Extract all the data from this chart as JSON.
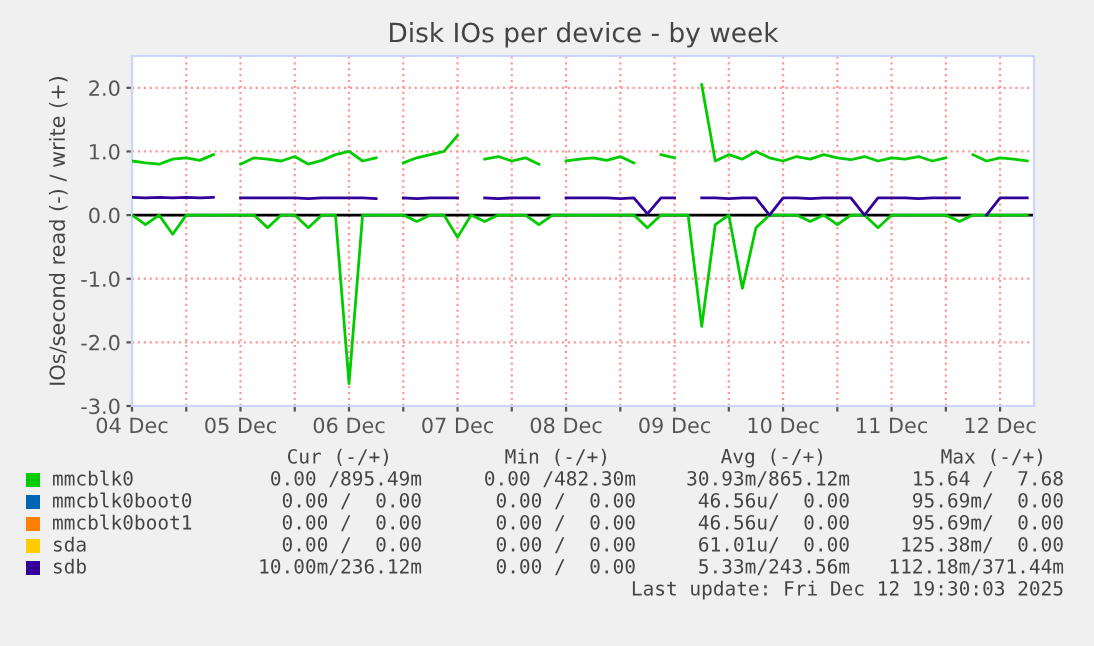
{
  "chart_data": {
    "type": "line",
    "title": "Disk IOs per device - by week",
    "ylabel": "IOs/second read (-) / write (+)",
    "x": [
      "2025-12-04T00:00",
      "2025-12-04T03:00",
      "2025-12-04T06:00",
      "2025-12-04T09:00",
      "2025-12-04T12:00",
      "2025-12-04T15:00",
      "2025-12-04T18:00",
      "2025-12-04T21:00",
      "2025-12-05T00:00",
      "2025-12-05T03:00",
      "2025-12-05T06:00",
      "2025-12-05T09:00",
      "2025-12-05T12:00",
      "2025-12-05T15:00",
      "2025-12-05T18:00",
      "2025-12-05T21:00",
      "2025-12-06T00:00",
      "2025-12-06T03:00",
      "2025-12-06T06:00",
      "2025-12-06T09:00",
      "2025-12-06T12:00",
      "2025-12-06T15:00",
      "2025-12-06T18:00",
      "2025-12-06T21:00",
      "2025-12-07T00:00",
      "2025-12-07T03:00",
      "2025-12-07T06:00",
      "2025-12-07T09:00",
      "2025-12-07T12:00",
      "2025-12-07T15:00",
      "2025-12-07T18:00",
      "2025-12-07T21:00",
      "2025-12-08T00:00",
      "2025-12-08T03:00",
      "2025-12-08T06:00",
      "2025-12-08T09:00",
      "2025-12-08T12:00",
      "2025-12-08T15:00",
      "2025-12-08T18:00",
      "2025-12-08T21:00",
      "2025-12-09T00:00",
      "2025-12-09T03:00",
      "2025-12-09T06:00",
      "2025-12-09T09:00",
      "2025-12-09T12:00",
      "2025-12-09T15:00",
      "2025-12-09T18:00",
      "2025-12-09T21:00",
      "2025-12-10T00:00",
      "2025-12-10T03:00",
      "2025-12-10T06:00",
      "2025-12-10T09:00",
      "2025-12-10T12:00",
      "2025-12-10T15:00",
      "2025-12-10T18:00",
      "2025-12-10T21:00",
      "2025-12-11T00:00",
      "2025-12-11T03:00",
      "2025-12-11T06:00",
      "2025-12-11T09:00",
      "2025-12-11T12:00",
      "2025-12-11T15:00",
      "2025-12-11T18:00",
      "2025-12-11T21:00",
      "2025-12-12T00:00",
      "2025-12-12T03:00",
      "2025-12-12T06:00"
    ],
    "series": [
      {
        "name": "mmcblk0",
        "color": "#00cc00",
        "values": [
          0.85,
          0.82,
          0.8,
          0.88,
          0.9,
          0.86,
          0.95,
          null,
          0.8,
          0.9,
          0.88,
          0.85,
          0.92,
          0.8,
          0.86,
          0.95,
          1.0,
          0.85,
          0.9,
          null,
          0.82,
          0.9,
          0.95,
          1.0,
          1.25,
          null,
          0.88,
          0.92,
          0.85,
          0.9,
          0.8,
          null,
          0.85,
          0.88,
          0.9,
          0.86,
          0.92,
          0.82,
          null,
          0.95,
          0.9,
          null,
          2.05,
          0.85,
          0.95,
          0.88,
          1.0,
          0.9,
          0.85,
          0.92,
          0.88,
          0.95,
          0.9,
          0.87,
          0.92,
          0.85,
          0.9,
          0.88,
          0.92,
          0.85,
          0.9,
          null,
          0.95,
          0.85,
          0.9,
          0.88,
          0.85
        ]
      },
      {
        "color": "#00cc00",
        "values": [
          0,
          -0.15,
          0,
          -0.3,
          0,
          0,
          0,
          0,
          0,
          0,
          -0.2,
          0,
          0,
          -0.2,
          0,
          0,
          -2.65,
          0,
          0,
          0,
          0,
          -0.1,
          0,
          0,
          -0.35,
          0,
          -0.1,
          0,
          0,
          0,
          -0.15,
          0,
          0,
          0,
          0,
          0,
          0,
          0,
          -0.2,
          0,
          0,
          0,
          -1.75,
          -0.15,
          0,
          -1.15,
          -0.2,
          0,
          0,
          0,
          -0.1,
          0,
          -0.15,
          0,
          0,
          -0.2,
          0,
          0,
          0,
          0,
          0,
          -0.1,
          0,
          0,
          0,
          0,
          0
        ]
      },
      {
        "name": "mmcblk0boot0",
        "color": "#0066b3",
        "values": [
          null,
          null,
          null,
          null,
          null,
          null,
          null,
          null,
          null,
          null,
          null,
          null,
          null,
          null,
          null,
          null,
          null,
          null,
          null,
          null,
          null,
          null,
          null,
          null,
          null,
          null,
          null,
          null,
          null,
          null,
          null,
          null,
          null,
          null,
          null,
          null,
          null,
          null,
          null,
          null,
          null,
          null,
          null,
          null,
          null,
          null,
          null,
          null,
          null,
          null,
          null,
          null,
          null,
          null,
          null,
          null,
          null,
          null,
          null,
          null,
          null,
          null,
          null,
          null,
          null,
          null,
          null
        ]
      },
      {
        "name": "mmcblk0boot1",
        "color": "#ff8000",
        "values": [
          null,
          null,
          null,
          null,
          null,
          null,
          null,
          null,
          null,
          null,
          null,
          null,
          null,
          null,
          null,
          null,
          null,
          null,
          null,
          null,
          null,
          null,
          null,
          null,
          null,
          null,
          null,
          null,
          null,
          null,
          null,
          null,
          null,
          null,
          null,
          null,
          null,
          null,
          null,
          null,
          null,
          null,
          null,
          null,
          null,
          null,
          null,
          null,
          null,
          null,
          null,
          null,
          null,
          null,
          null,
          null,
          null,
          null,
          null,
          null,
          null,
          null,
          null,
          null,
          null,
          null,
          null
        ]
      },
      {
        "name": "sda",
        "color": "#ffcc00",
        "values": [
          null,
          null,
          null,
          null,
          null,
          null,
          null,
          null,
          null,
          null,
          null,
          null,
          null,
          null,
          null,
          null,
          null,
          null,
          null,
          null,
          null,
          null,
          null,
          null,
          null,
          null,
          null,
          null,
          null,
          null,
          null,
          null,
          null,
          null,
          null,
          null,
          null,
          null,
          null,
          null,
          null,
          null,
          null,
          null,
          null,
          null,
          null,
          null,
          null,
          null,
          null,
          null,
          null,
          null,
          null,
          null,
          null,
          null,
          null,
          null,
          null,
          null,
          null,
          null,
          null,
          null,
          null
        ]
      },
      {
        "name": "sdb",
        "color": "#330099",
        "values": [
          0.28,
          0.27,
          0.28,
          0.27,
          0.28,
          0.27,
          0.28,
          null,
          0.27,
          0.27,
          0.27,
          0.27,
          0.27,
          0.26,
          0.27,
          0.27,
          0.27,
          0.27,
          0.26,
          null,
          0.27,
          0.26,
          0.27,
          0.27,
          0.27,
          null,
          0.27,
          0.26,
          0.27,
          0.27,
          0.27,
          null,
          0.27,
          0.27,
          0.27,
          0.27,
          0.26,
          0.27,
          0.02,
          0.27,
          0.27,
          null,
          0.27,
          0.27,
          0.26,
          0.27,
          0.27,
          0.0,
          0.27,
          0.27,
          0.26,
          0.27,
          0.27,
          0.27,
          0.0,
          0.27,
          0.27,
          0.27,
          0.26,
          0.27,
          0.27,
          0.27,
          null,
          0.0,
          0.27,
          0.27,
          0.27
        ]
      }
    ],
    "xlim": [
      "2025-12-04T00:00",
      "2025-12-12T07:30"
    ],
    "xticks": [
      {
        "value": "2025-12-04T00:00",
        "label": "04 Dec"
      },
      {
        "value": "2025-12-04T12:00",
        "label": null
      },
      {
        "value": "2025-12-05T00:00",
        "label": "05 Dec"
      },
      {
        "value": "2025-12-05T12:00",
        "label": null
      },
      {
        "value": "2025-12-06T00:00",
        "label": "06 Dec"
      },
      {
        "value": "2025-12-06T12:00",
        "label": null
      },
      {
        "value": "2025-12-07T00:00",
        "label": "07 Dec"
      },
      {
        "value": "2025-12-07T12:00",
        "label": null
      },
      {
        "value": "2025-12-08T00:00",
        "label": "08 Dec"
      },
      {
        "value": "2025-12-08T12:00",
        "label": null
      },
      {
        "value": "2025-12-09T00:00",
        "label": "09 Dec"
      },
      {
        "value": "2025-12-09T12:00",
        "label": null
      },
      {
        "value": "2025-12-10T00:00",
        "label": "10 Dec"
      },
      {
        "value": "2025-12-10T12:00",
        "label": null
      },
      {
        "value": "2025-12-11T00:00",
        "label": "11 Dec"
      },
      {
        "value": "2025-12-11T12:00",
        "label": null
      },
      {
        "value": "2025-12-12T00:00",
        "label": "12 Dec"
      }
    ],
    "ylim": [
      -3,
      2.5
    ],
    "yticks": [
      {
        "value": -3,
        "label": "-3.0"
      },
      {
        "value": -2,
        "label": "-2.0"
      },
      {
        "value": -1,
        "label": "-1.0"
      },
      {
        "value": 0,
        "label": "0.0"
      },
      {
        "value": 1,
        "label": "1.0"
      },
      {
        "value": 2,
        "label": "2.0"
      }
    ],
    "ref_lines": [
      {
        "axis": "y",
        "value": 0,
        "color": "#000000"
      }
    ],
    "grid": true,
    "legend": "bottom",
    "marker": "none",
    "line_style": "solid",
    "annotations": [
      "Cur (-/+)",
      "Min (-/+)",
      "Avg (-/+)",
      "Max (-/+)",
      "0.00 /895.49m",
      "0.00 /482.30m",
      "30.93m/865.12m",
      "15.64 /  7.68",
      "0.00 /  0.00",
      "0.00 /  0.00",
      "46.56u/  0.00",
      "95.69m/  0.00",
      "0.00 /  0.00",
      "0.00 /  0.00",
      "46.56u/  0.00",
      "95.69m/  0.00",
      "0.00 /  0.00",
      "0.00 /  0.00",
      "61.01u/  0.00",
      "125.38m/  0.00",
      "10.00m/236.12m",
      "0.00 /  0.00",
      "5.33m/243.56m",
      "112.18m/371.44m",
      "Last update: Fri Dec 12 19:30:03 2025"
    ]
  }
}
